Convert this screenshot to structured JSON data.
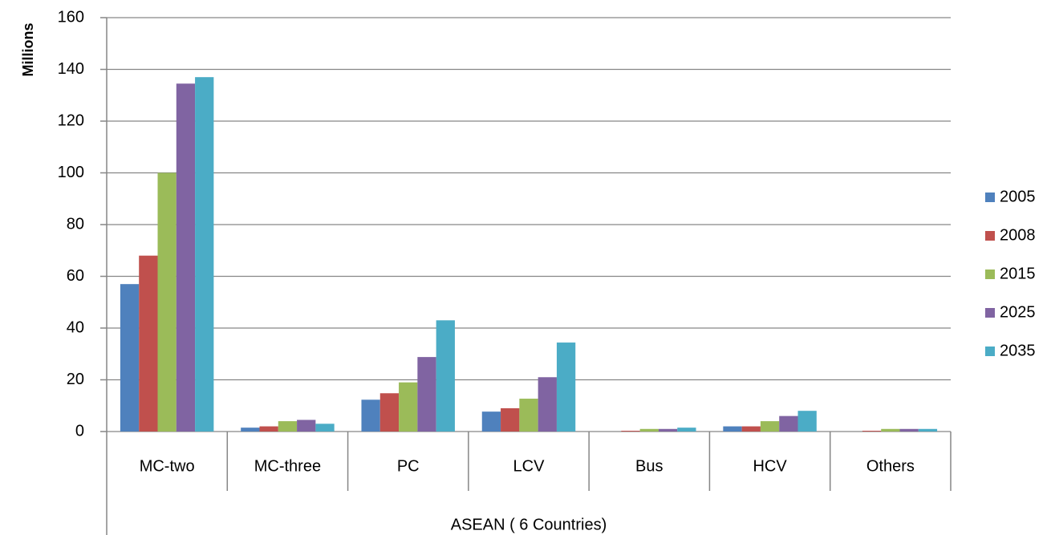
{
  "chart_data": {
    "type": "bar",
    "y_label": "Millions",
    "group_label": "ASEAN ( 6 Countries)",
    "categories": [
      "MC-two",
      "MC-three",
      "PC",
      "LCV",
      "Bus",
      "HCV",
      "Others"
    ],
    "series": [
      {
        "name": "2005",
        "color": "#4f81bd",
        "values": [
          57,
          1.5,
          12.3,
          7.7,
          0,
          2,
          0
        ]
      },
      {
        "name": "2008",
        "color": "#c0504d",
        "values": [
          68,
          2,
          14.8,
          9,
          0.3,
          2,
          0.3
        ]
      },
      {
        "name": "2015",
        "color": "#9bbb59",
        "values": [
          100,
          4,
          19,
          12.7,
          1,
          4,
          1
        ]
      },
      {
        "name": "2025",
        "color": "#8064a2",
        "values": [
          134.5,
          4.5,
          28.8,
          21,
          1,
          6,
          1
        ]
      },
      {
        "name": "2035",
        "color": "#4bacc6",
        "values": [
          137,
          3,
          43,
          34.4,
          1.5,
          8,
          1
        ]
      }
    ],
    "ylim": [
      0,
      160
    ],
    "yticks": [
      0,
      20,
      40,
      60,
      80,
      100,
      120,
      140,
      160
    ],
    "grid": true,
    "legend": "right"
  }
}
